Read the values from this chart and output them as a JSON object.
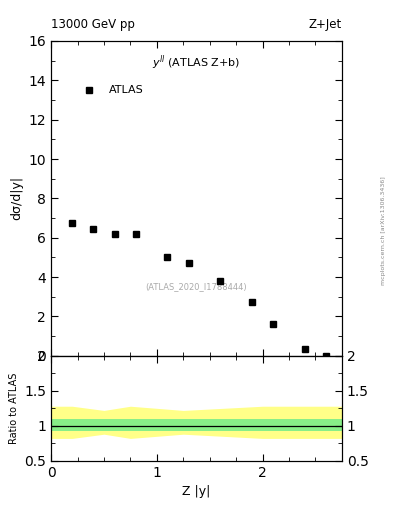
{
  "title_left": "13000 GeV pp",
  "title_right": "Z+Jet",
  "atlas_label": "ATLAS",
  "watermark": "(ATLAS_2020_I1788444)",
  "xlabel": "Z |y|",
  "ylabel_main": "dσ/d|y|",
  "ylabel_ratio": "Ratio to ATLAS",
  "side_label": "mcplots.cern.ch [arXiv:1306.3436]",
  "pts_x": [
    0.2,
    0.4,
    0.6,
    0.8,
    1.1,
    1.3,
    1.6,
    1.9,
    2.1,
    2.4,
    2.6
  ],
  "pts_y": [
    6.75,
    6.45,
    6.2,
    6.2,
    5.0,
    4.7,
    3.8,
    2.75,
    1.6,
    0.35,
    0.0
  ],
  "ylim_main": [
    0,
    16
  ],
  "ylim_ratio": [
    0.5,
    2.0
  ],
  "xlim": [
    0,
    2.75
  ],
  "yticks_main": [
    0,
    2,
    4,
    6,
    8,
    10,
    12,
    14,
    16
  ],
  "yticks_ratio": [
    0.5,
    1.0,
    1.5,
    2.0
  ],
  "xticks": [
    0,
    1,
    2
  ],
  "band_x": [
    0.0,
    0.2,
    0.2,
    0.5,
    0.5,
    0.75,
    0.75,
    1.25,
    1.25,
    2.0,
    2.0,
    2.75
  ],
  "green_upper_y": [
    1.1,
    1.1,
    1.1,
    1.1,
    1.1,
    1.1,
    1.1,
    1.1,
    1.1,
    1.1,
    1.1,
    1.1
  ],
  "green_lower_y": [
    0.93,
    0.93,
    0.93,
    0.93,
    0.93,
    0.93,
    0.93,
    0.93,
    0.93,
    0.93,
    0.93,
    0.93
  ],
  "yellow_upper_y": [
    1.28,
    1.28,
    1.28,
    1.22,
    1.22,
    1.28,
    1.28,
    1.22,
    1.22,
    1.28,
    1.28,
    1.28
  ],
  "yellow_lower_y": [
    0.82,
    0.82,
    0.82,
    0.88,
    0.88,
    0.82,
    0.82,
    0.88,
    0.88,
    0.82,
    0.82,
    0.82
  ],
  "marker_color": "#000000",
  "marker_style": "s",
  "marker_size": 5,
  "bg_color": "#ffffff"
}
